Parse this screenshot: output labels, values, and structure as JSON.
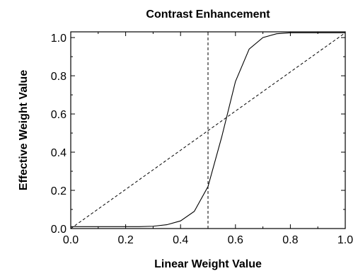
{
  "chart_data": {
    "type": "line",
    "title": "Contrast Enhancement",
    "xlabel": "Linear Weight Value",
    "ylabel": "Effective Weight Value",
    "xlim": [
      0.0,
      1.0
    ],
    "ylim": [
      0.0,
      1.03
    ],
    "x_ticks": [
      "0.0",
      "0.2",
      "0.4",
      "0.6",
      "0.8",
      "1.0"
    ],
    "y_ticks": [
      "0.0",
      "0.2",
      "0.4",
      "0.6",
      "0.8",
      "1.0"
    ],
    "grid": false,
    "legend": "none",
    "series": [
      {
        "style": "solid",
        "x": [
          0.0,
          0.05,
          0.1,
          0.15,
          0.2,
          0.25,
          0.3,
          0.35,
          0.4,
          0.45,
          0.5,
          0.55,
          0.6,
          0.65,
          0.7,
          0.75,
          0.8,
          0.85,
          0.9,
          0.95,
          1.0
        ],
        "y": [
          0.01,
          0.01,
          0.01,
          0.01,
          0.01,
          0.01,
          0.012,
          0.02,
          0.04,
          0.09,
          0.22,
          0.48,
          0.77,
          0.94,
          1.0,
          1.02,
          1.025,
          1.025,
          1.025,
          1.025,
          1.025
        ]
      },
      {
        "style": "dashed",
        "x": [
          0.0,
          1.0
        ],
        "y": [
          0.0,
          1.025
        ]
      },
      {
        "style": "dashed",
        "x": [
          0.5,
          0.5
        ],
        "y": [
          0.0,
          1.03
        ]
      }
    ]
  }
}
